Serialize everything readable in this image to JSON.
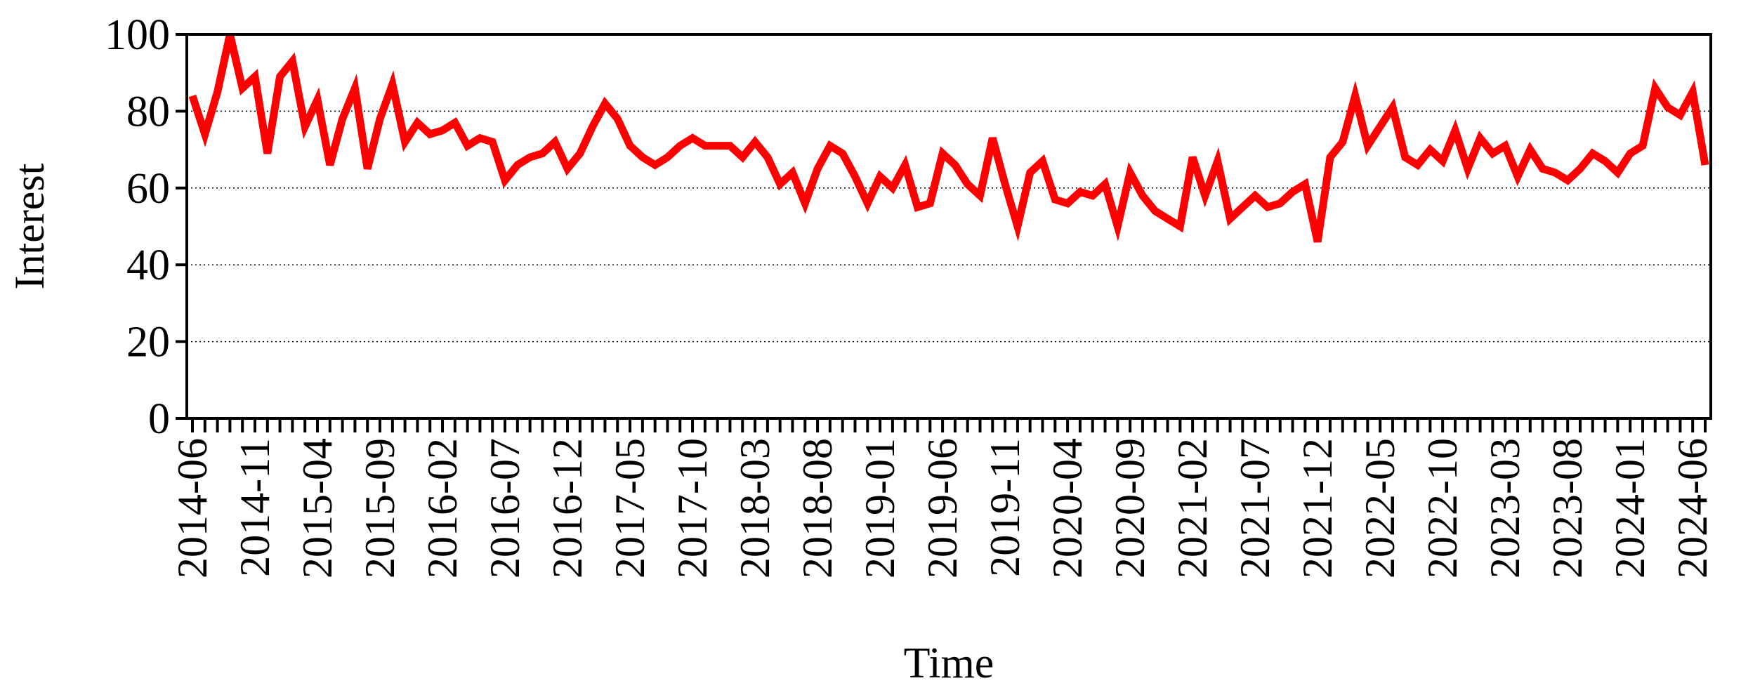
{
  "chart_data": {
    "type": "line",
    "xlabel": "Time",
    "ylabel": "Interest",
    "ylim": [
      0,
      100
    ],
    "yticks": [
      "0",
      "20",
      "40",
      "60",
      "80",
      "100"
    ],
    "grid": "horizontal dotted at y ticks",
    "xtick_labels": [
      "2014-06",
      "2014-11",
      "2015-04",
      "2015-09",
      "2016-02",
      "2016-07",
      "2016-12",
      "2017-05",
      "2017-10",
      "2018-03",
      "2018-08",
      "2019-01",
      "2019-06",
      "2019-11",
      "2020-04",
      "2020-09",
      "2021-02",
      "2021-07",
      "2021-12",
      "2022-05",
      "2022-10",
      "2023-03",
      "2023-08",
      "2024-01",
      "2024-06"
    ],
    "start_month": "2014-06",
    "series": [
      {
        "color": "#ff0000",
        "values": [
          84,
          74,
          85,
          100,
          86,
          89,
          69,
          89,
          93,
          76,
          83,
          66,
          78,
          86,
          65,
          78,
          87,
          72,
          77,
          74,
          75,
          77,
          71,
          73,
          72,
          62,
          66,
          68,
          69,
          72,
          65,
          69,
          76,
          82,
          78,
          71,
          68,
          66,
          68,
          71,
          73,
          71,
          71,
          71,
          68,
          72,
          68,
          61,
          64,
          56,
          65,
          71,
          69,
          63,
          56,
          63,
          60,
          66,
          55,
          56,
          69,
          66,
          61,
          58,
          73,
          61,
          50,
          64,
          67,
          57,
          56,
          59,
          58,
          61,
          50,
          64,
          58,
          54,
          52,
          50,
          68,
          58,
          67,
          52,
          55,
          58,
          55,
          56,
          59,
          61,
          46,
          68,
          72,
          84,
          71,
          76,
          81,
          68,
          66,
          70,
          67,
          75,
          65,
          73,
          69,
          71,
          63,
          70,
          65,
          64,
          62,
          65,
          69,
          67,
          64,
          69,
          71,
          86,
          81,
          79,
          85,
          66
        ]
      }
    ]
  }
}
